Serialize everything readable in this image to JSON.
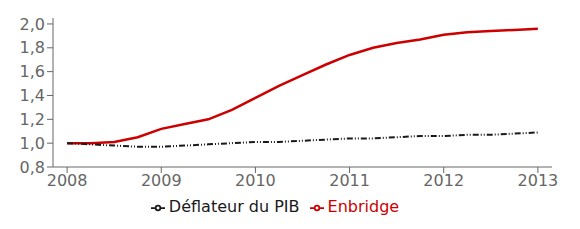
{
  "chart_data": {
    "type": "line",
    "x": [
      2008.0,
      2008.25,
      2008.5,
      2008.75,
      2009.0,
      2009.25,
      2009.5,
      2009.75,
      2010.0,
      2010.25,
      2010.5,
      2010.75,
      2011.0,
      2011.25,
      2011.5,
      2011.75,
      2012.0,
      2012.25,
      2012.5,
      2012.75,
      2013.0
    ],
    "series": [
      {
        "name": "Enbridge",
        "color": "#cc0000",
        "line_style": "solid",
        "values": [
          1.0,
          1.0,
          1.01,
          1.05,
          1.12,
          1.16,
          1.2,
          1.28,
          1.38,
          1.48,
          1.57,
          1.66,
          1.74,
          1.8,
          1.84,
          1.87,
          1.91,
          1.93,
          1.94,
          1.95,
          1.96
        ]
      },
      {
        "name": "Déflateur du PIB",
        "color": "#1a1a1a",
        "line_style": "dashdot",
        "values": [
          1.0,
          0.99,
          0.98,
          0.97,
          0.97,
          0.98,
          0.99,
          1.0,
          1.01,
          1.01,
          1.02,
          1.03,
          1.04,
          1.04,
          1.05,
          1.06,
          1.06,
          1.07,
          1.07,
          1.08,
          1.09
        ]
      }
    ],
    "xlim": [
      2007.85,
      2013.15
    ],
    "xticks": [
      2008,
      2009,
      2010,
      2011,
      2012,
      2013
    ],
    "ylim": [
      0.8,
      2.05
    ],
    "yticks": [
      {
        "value": 0.8,
        "label": "0,8"
      },
      {
        "value": 1.0,
        "label": "1,0"
      },
      {
        "value": 1.2,
        "label": "1,2"
      },
      {
        "value": 1.4,
        "label": "1,4"
      },
      {
        "value": 1.6,
        "label": "1,6"
      },
      {
        "value": 1.8,
        "label": "1,8"
      },
      {
        "value": 2.0,
        "label": "2,0"
      }
    ],
    "grid": false,
    "legend": "bottom"
  }
}
